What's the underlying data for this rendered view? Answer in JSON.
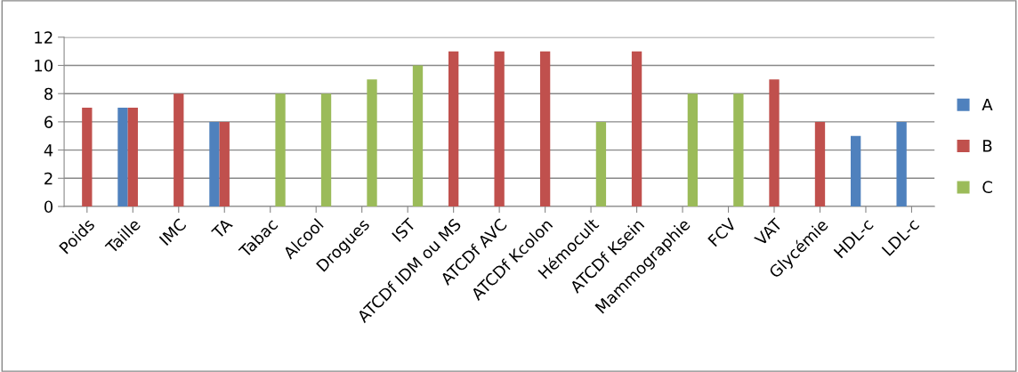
{
  "chart_data": {
    "type": "bar",
    "categories": [
      "Poids",
      "Taille",
      "IMC",
      "TA",
      "Tabac",
      "Alcool",
      "Drogues",
      "IST",
      "ATCDf IDM ou MS",
      "ATCDf AVC",
      "ATCDf Kcolon",
      "Hémocult",
      "ATCDf Ksein",
      "Mammographie",
      "FCV",
      "VAT",
      "Glycémie",
      "HDL-c",
      "LDL-c"
    ],
    "series": [
      {
        "name": "A",
        "color": "#4f81bd",
        "values": [
          null,
          7,
          null,
          6,
          null,
          null,
          null,
          null,
          null,
          null,
          null,
          null,
          null,
          null,
          null,
          null,
          null,
          5,
          6
        ]
      },
      {
        "name": "B",
        "color": "#c0504d",
        "values": [
          7,
          7,
          8,
          6,
          null,
          null,
          null,
          null,
          11,
          11,
          11,
          null,
          11,
          null,
          null,
          9,
          6,
          null,
          null
        ]
      },
      {
        "name": "C",
        "color": "#9bbb59",
        "values": [
          null,
          null,
          null,
          null,
          8,
          8,
          9,
          10,
          null,
          null,
          null,
          6,
          null,
          8,
          8,
          null,
          null,
          null,
          null
        ]
      }
    ],
    "ylim": [
      0,
      12
    ],
    "yticks": [
      0,
      2,
      4,
      6,
      8,
      10,
      12
    ],
    "grid": "y",
    "legend": "right"
  }
}
